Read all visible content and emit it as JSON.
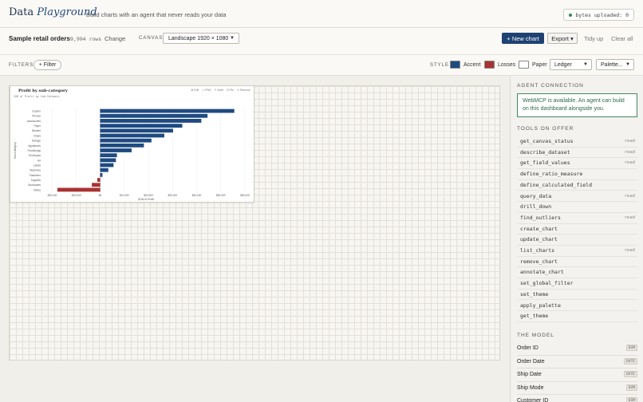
{
  "header": {
    "logo_plain": "Data",
    "logo_italic": "Playground",
    "tagline": "Build charts with an agent that never reads your data",
    "bytes_label": "bytes uploaded:",
    "bytes_value": "0"
  },
  "dataset": {
    "name": "Sample retail orders",
    "rows": "9,994 rows",
    "change_label": "Change"
  },
  "canvas": {
    "label": "CANVAS",
    "selected": "Landscape 1920 × 1080"
  },
  "toolbar": {
    "new_chart": "+ New chart",
    "export": "Export ▾",
    "tidy": "Tidy up",
    "clear": "Clear all"
  },
  "filters": {
    "label": "FILTERS",
    "add": "+ Filter"
  },
  "style": {
    "label": "STYLE",
    "accent_label": "Accent",
    "accent_color": "#1e4a80",
    "losses_label": "Losses",
    "losses_color": "#a83232",
    "paper_label": "Paper",
    "paper_color": "#ffffff",
    "theme": "Ledger",
    "palette": "Palette..."
  },
  "card": {
    "title": "Profit by sub-category",
    "subtitle": "SUM of Profit by Sub-Category",
    "actions": [
      "⊕ Edit",
      "⇩ PNG",
      "✎ Note",
      "⊡ Pin",
      "✕ Remove"
    ]
  },
  "chart_data": {
    "type": "bar",
    "orientation": "horizontal",
    "title": "Profit by sub-category",
    "subtitle": "SUM of Profit by Sub-Category",
    "xlabel": "SUM of Profit",
    "ylabel": "Sub-Category",
    "categories": [
      "Copiers",
      "Phones",
      "Accessories",
      "Paper",
      "Binders",
      "Chairs",
      "Storage",
      "Appliances",
      "Furnishings",
      "Envelopes",
      "Art",
      "Labels",
      "Machines",
      "Fasteners",
      "Supplies",
      "Bookcases",
      "Tables"
    ],
    "values": [
      55618,
      44516,
      41937,
      34054,
      30222,
      26590,
      21279,
      18138,
      13059,
      6964,
      6528,
      5546,
      3385,
      950,
      -1189,
      -3473,
      -17725
    ],
    "xlim": [
      -24000,
      62000
    ],
    "xticks": [
      -20000,
      -10000,
      0,
      10000,
      20000,
      30000,
      40000,
      50000,
      60000
    ],
    "xtick_labels": [
      "-$20,000",
      "-$10,000",
      "$0",
      "$10,000",
      "$20,000",
      "$30,000",
      "$40,000",
      "$50,000",
      "$60,000"
    ],
    "positive_color": "#1e4a80",
    "negative_color": "#a83232",
    "grid": true,
    "legend": "none"
  },
  "agent": {
    "section_title": "AGENT CONNECTION",
    "status": "WebMCP is available. An agent can build on this dashboard alongside you."
  },
  "tools": {
    "section_title": "TOOLS ON OFFER",
    "items": [
      {
        "name": "get_canvas_status",
        "tag": "read"
      },
      {
        "name": "describe_dataset",
        "tag": "read"
      },
      {
        "name": "get_field_values",
        "tag": "read"
      },
      {
        "name": "define_ratio_measure",
        "tag": ""
      },
      {
        "name": "define_calculated_field",
        "tag": ""
      },
      {
        "name": "query_data",
        "tag": "read"
      },
      {
        "name": "drill_down",
        "tag": ""
      },
      {
        "name": "find_outliers",
        "tag": "read"
      },
      {
        "name": "create_chart",
        "tag": ""
      },
      {
        "name": "update_chart",
        "tag": ""
      },
      {
        "name": "list_charts",
        "tag": "read"
      },
      {
        "name": "remove_chart",
        "tag": ""
      },
      {
        "name": "annotate_chart",
        "tag": ""
      },
      {
        "name": "set_global_filter",
        "tag": ""
      },
      {
        "name": "set_theme",
        "tag": ""
      },
      {
        "name": "apply_palette",
        "tag": ""
      },
      {
        "name": "get_theme",
        "tag": ""
      }
    ]
  },
  "model": {
    "section_title": "THE MODEL",
    "fields": [
      {
        "name": "Order ID",
        "type": "DIM"
      },
      {
        "name": "Order Date",
        "type": "DATE"
      },
      {
        "name": "Ship Date",
        "type": "DATE"
      },
      {
        "name": "Ship Mode",
        "type": "DIM"
      },
      {
        "name": "Customer ID",
        "type": "DIM"
      }
    ]
  }
}
